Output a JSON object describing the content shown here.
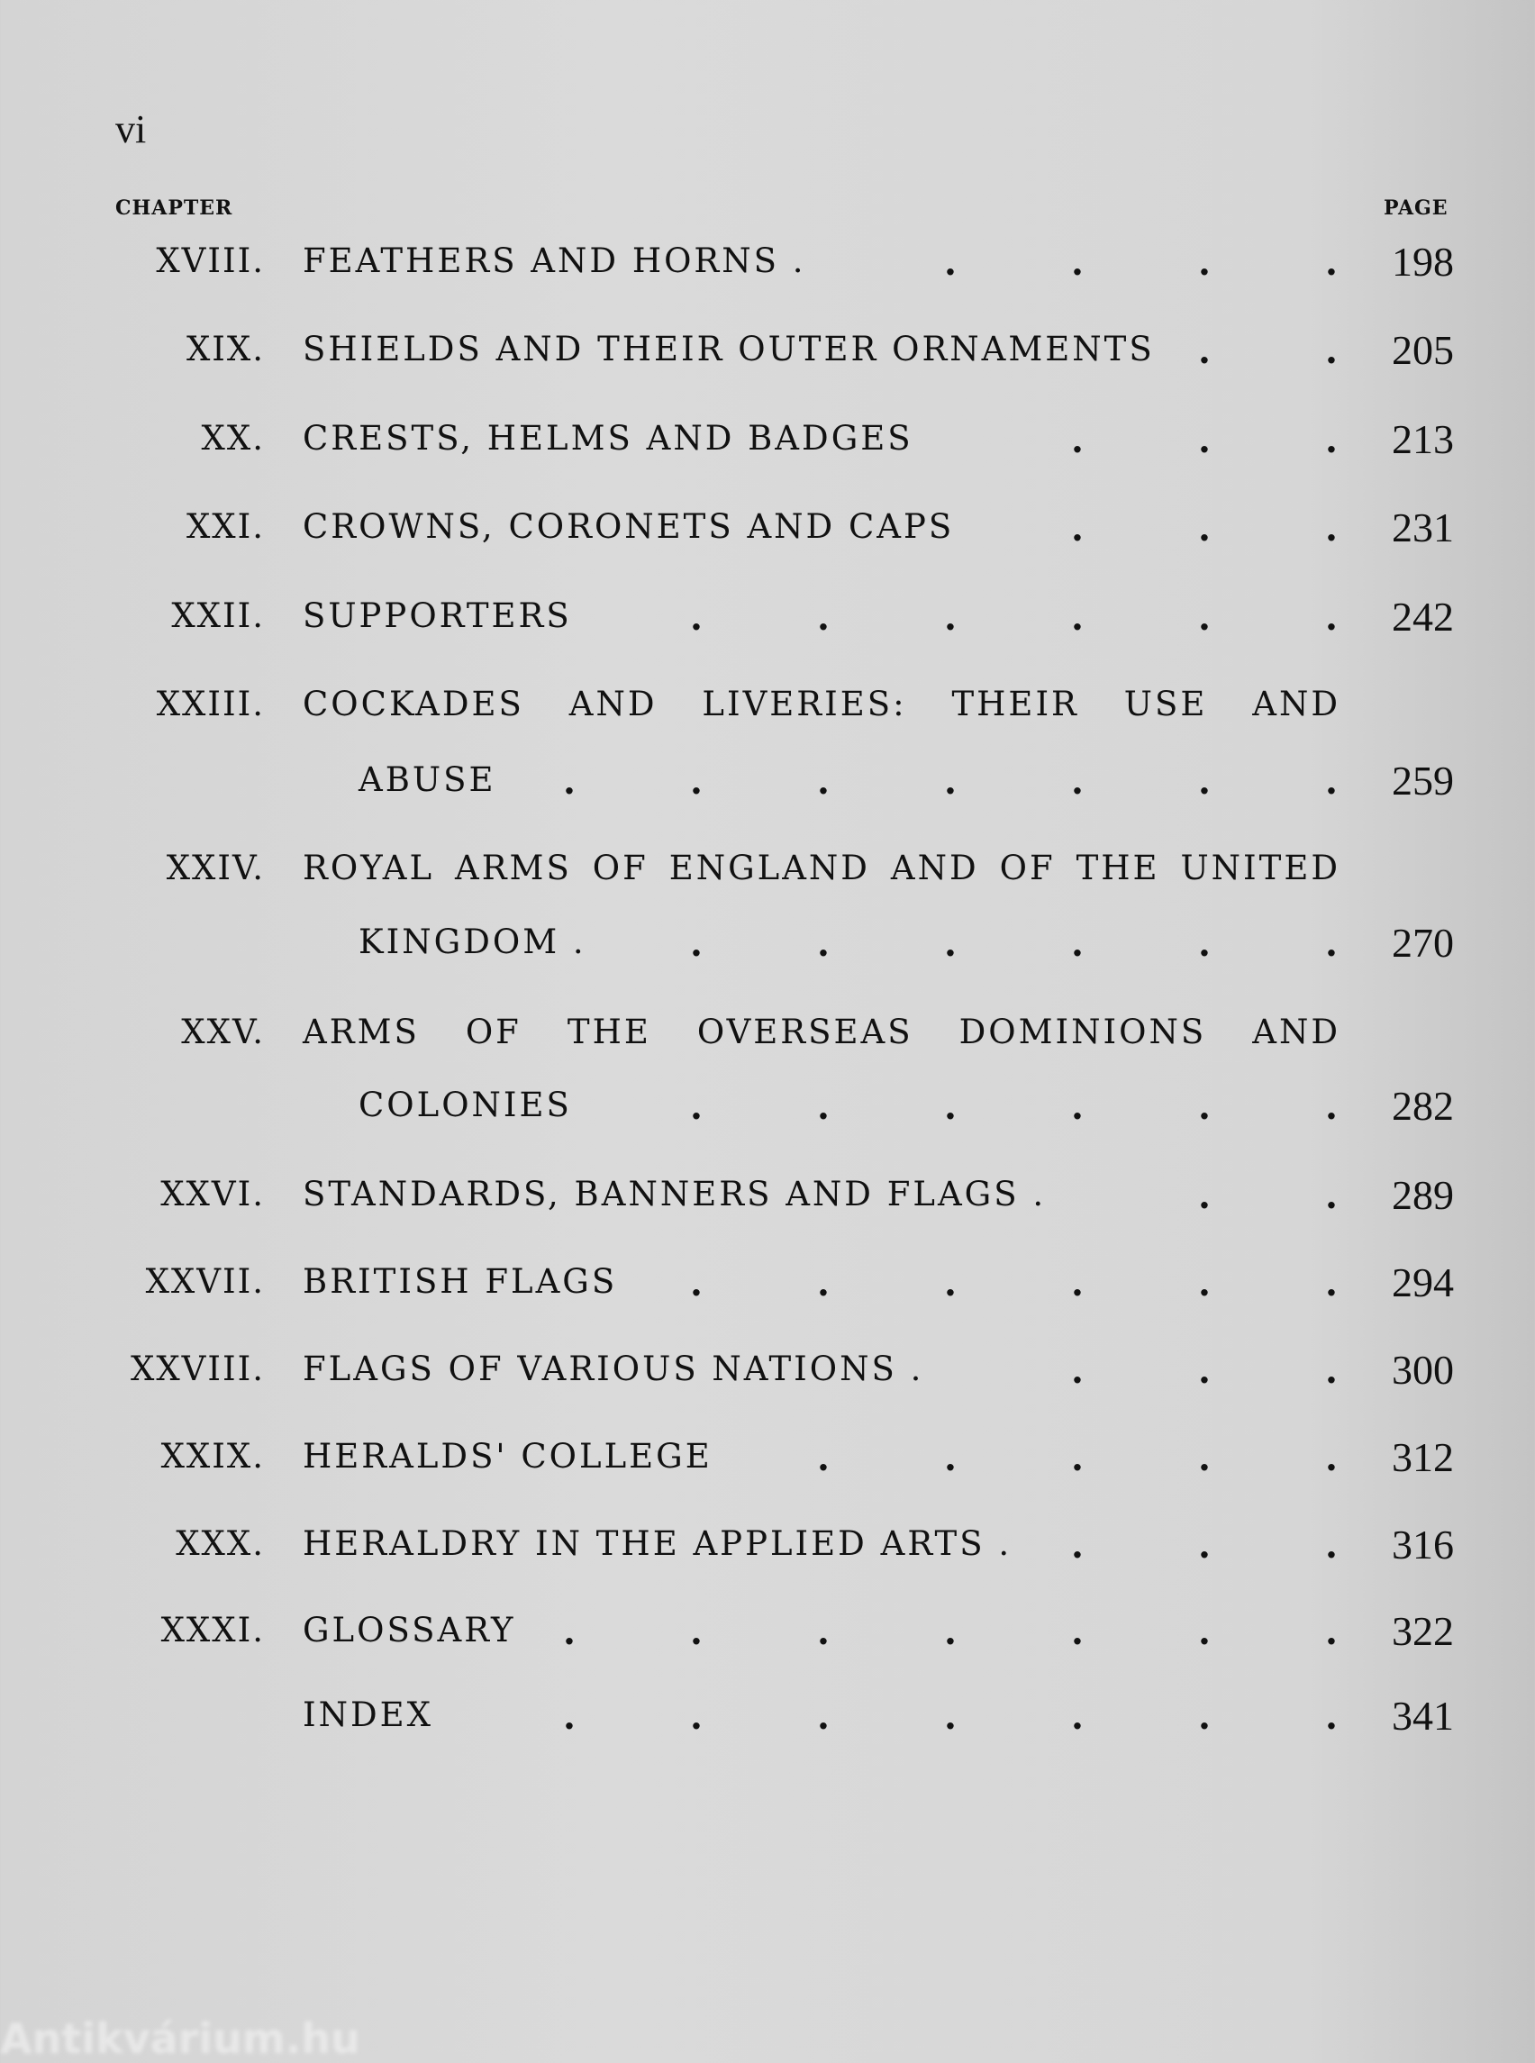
{
  "folio": "vi",
  "header": {
    "chapter_label": "CHAPTER",
    "page_label": "PAGE"
  },
  "entries": [
    {
      "num": "XVIII.",
      "title": "FEATHERS AND HORNS .",
      "page": "198"
    },
    {
      "num": "XIX.",
      "title": "SHIELDS AND THEIR OUTER ORNAMENTS",
      "page": "205"
    },
    {
      "num": "XX.",
      "title": "CRESTS, HELMS AND BADGES",
      "page": "213"
    },
    {
      "num": "XXI.",
      "title": "CROWNS, CORONETS AND CAPS",
      "page": "231"
    },
    {
      "num": "XXII.",
      "title": "SUPPORTERS",
      "page": "242"
    },
    {
      "num": "XXIII.",
      "title": "COCKADES AND LIVERIES: THEIR USE AND",
      "cont": "ABUSE",
      "page": "259"
    },
    {
      "num": "XXIV.",
      "title": "ROYAL ARMS OF ENGLAND AND OF THE UNITED",
      "cont": "KINGDOM .",
      "page": "270"
    },
    {
      "num": "XXV.",
      "title": "ARMS OF THE OVERSEAS DOMINIONS AND",
      "cont": "COLONIES",
      "page": "282"
    },
    {
      "num": "XXVI.",
      "title": "STANDARDS, BANNERS AND FLAGS .",
      "page": "289"
    },
    {
      "num": "XXVII.",
      "title": "BRITISH FLAGS",
      "page": "294"
    },
    {
      "num": "XXVIII.",
      "title": "FLAGS OF VARIOUS NATIONS .",
      "page": "300"
    },
    {
      "num": "XXIX.",
      "title": "HERALDS' COLLEGE",
      "page": "312"
    },
    {
      "num": "XXX.",
      "title": "HERALDRY IN THE APPLIED ARTS .",
      "page": "316"
    },
    {
      "num": "XXXI.",
      "title": "GLOSSARY",
      "page": "322"
    },
    {
      "num": "",
      "title": "INDEX",
      "page": "341"
    }
  ],
  "watermark": "Antikvárium.hu"
}
